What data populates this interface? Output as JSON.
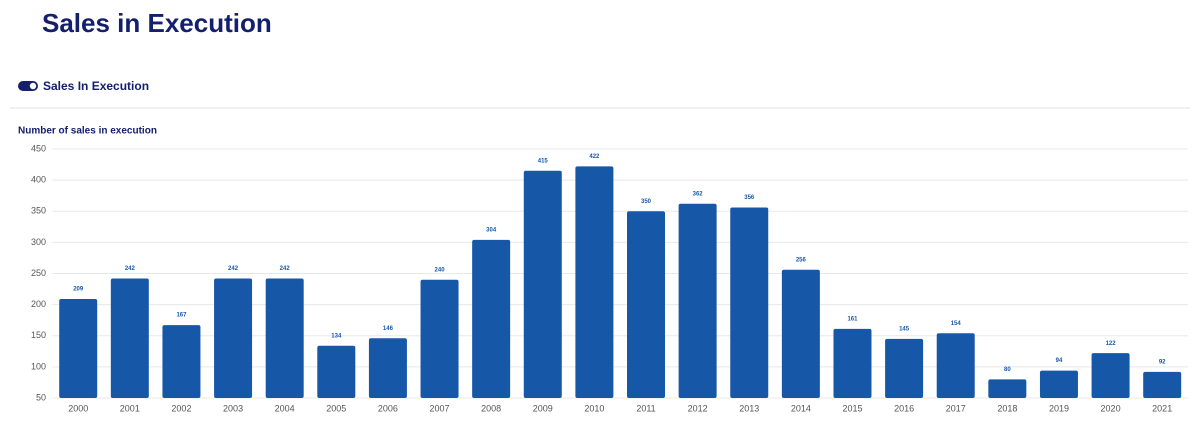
{
  "chart_data": {
    "type": "bar",
    "title": "Sales in Execution",
    "y_label": "Number of sales in execution",
    "categories": [
      "2000",
      "2001",
      "2002",
      "2003",
      "2004",
      "2005",
      "2006",
      "2007",
      "2008",
      "2009",
      "2010",
      "2011",
      "2012",
      "2013",
      "2014",
      "2015",
      "2016",
      "2017",
      "2018",
      "2019",
      "2020",
      "2021"
    ],
    "series": [
      {
        "name": "Sales In Execution",
        "color": "#1757a8",
        "values": [
          209,
          242,
          167,
          242,
          242,
          134,
          146,
          240,
          304,
          415,
          422,
          350,
          362,
          356,
          256,
          161,
          145,
          154,
          80,
          94,
          122,
          92
        ]
      }
    ],
    "ylim": [
      50,
      450
    ],
    "yticks": [
      50,
      100,
      150,
      200,
      250,
      300,
      350,
      400,
      450
    ],
    "grid": true
  }
}
